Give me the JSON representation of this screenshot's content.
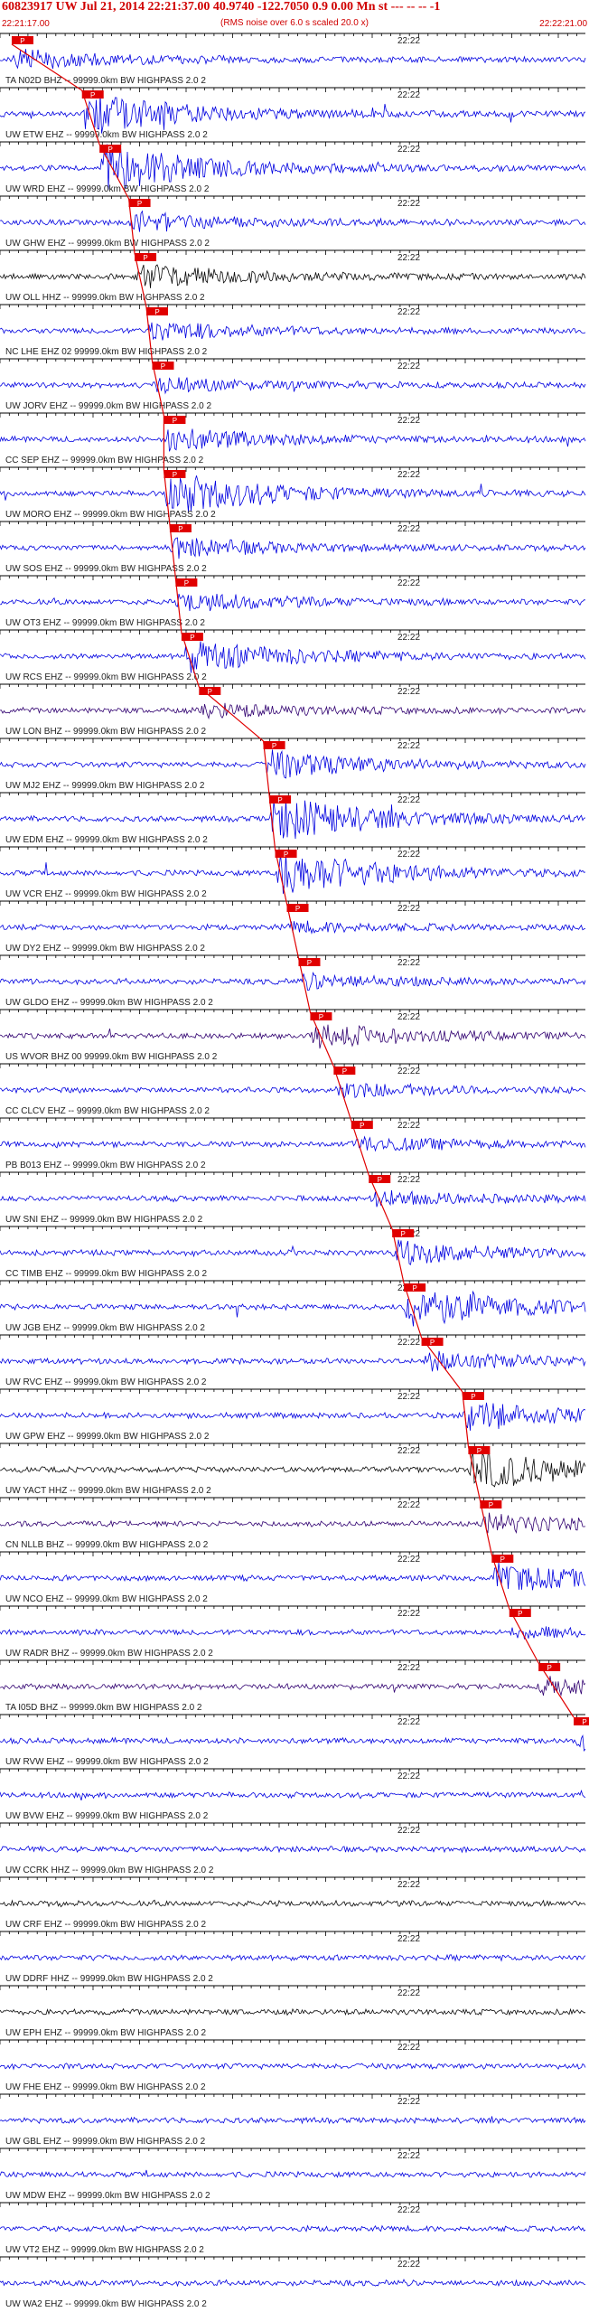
{
  "header": {
    "title": "60823917 UW Jul 21, 2014 22:21:37.00   40.9740  -122.7050   0.9 0.00 Mn st --- -- --   -1",
    "subtitle": "(RMS noise over 6.0 s scaled 20.0 x)",
    "time_start": "22:21:17.00",
    "time_end": "22:22:21.00"
  },
  "colors": {
    "pick": "#e00000",
    "trace_blue": "#0000e0",
    "trace_dark": "#0a0a0a",
    "trace_purple": "#300070",
    "header_text": "#d00000"
  },
  "chart_data": {
    "type": "line",
    "title": "60823917 UW Jul 21, 2014 22:21:37.00   40.9740  -122.7050   0.9 0.00 Mn st --- -- --   -1",
    "x_range": [
      "22:21:17.00",
      "22:22:21.00"
    ],
    "minute_mark": "22:22",
    "pick_marker": "P",
    "traces": [
      {
        "label": "TA N02D BHZ -- 99999.0km BW  HIGHPASS  2.0  2",
        "pick": 0.02,
        "amp": 0.4,
        "color": "blue"
      },
      {
        "label": "UW ETW EHZ -- 99999.0km BW  HIGHPASS  2.0  2",
        "pick": 0.14,
        "amp": 0.9,
        "color": "blue"
      },
      {
        "label": "UW WRD EHZ -- 99999.0km BW  HIGHPASS  2.0  2",
        "pick": 0.17,
        "amp": 1.0,
        "color": "blue"
      },
      {
        "label": "UW GHW EHZ -- 99999.0km BW  HIGHPASS  2.0  2",
        "pick": 0.22,
        "amp": 0.4,
        "color": "blue"
      },
      {
        "label": "UW OLL HHZ -- 99999.0km BW  HIGHPASS  2.0  2",
        "pick": 0.23,
        "amp": 0.5,
        "color": "dark"
      },
      {
        "label": "NC LHE EHZ 02 99999.0km BW  HIGHPASS  2.0  2",
        "pick": 0.25,
        "amp": 0.4,
        "color": "blue"
      },
      {
        "label": "UW JORV EHZ -- 99999.0km BW  HIGHPASS  2.0  2",
        "pick": 0.26,
        "amp": 0.3,
        "color": "blue"
      },
      {
        "label": "CC SEP EHZ -- 99999.0km BW  HIGHPASS  2.0  2",
        "pick": 0.28,
        "amp": 0.5,
        "color": "blue"
      },
      {
        "label": "UW MORO EHZ -- 99999.0km BW  HIGHPASS  2.0  2",
        "pick": 0.28,
        "amp": 0.9,
        "color": "blue"
      },
      {
        "label": "UW SOS EHZ -- 99999.0km BW  HIGHPASS  2.0  2",
        "pick": 0.29,
        "amp": 0.4,
        "color": "blue"
      },
      {
        "label": "UW OT3 EHZ -- 99999.0km BW  HIGHPASS  2.0  2",
        "pick": 0.3,
        "amp": 0.4,
        "color": "blue"
      },
      {
        "label": "UW RCS EHZ -- 99999.0km BW  HIGHPASS  2.0  2",
        "pick": 0.31,
        "amp": 0.7,
        "color": "blue"
      },
      {
        "label": "UW LON BHZ -- 99999.0km BW  HIGHPASS  2.0  2",
        "pick": 0.34,
        "amp": 0.3,
        "color": "purple"
      },
      {
        "label": "UW MJ2 EHZ -- 99999.0km BW  HIGHPASS  2.0  2",
        "pick": 0.45,
        "amp": 0.6,
        "color": "blue"
      },
      {
        "label": "UW EDM EHZ -- 99999.0km BW  HIGHPASS  2.0  2",
        "pick": 0.46,
        "amp": 1.0,
        "color": "blue"
      },
      {
        "label": "UW VCR EHZ -- 99999.0km BW  HIGHPASS  2.0  2",
        "pick": 0.47,
        "amp": 1.0,
        "color": "blue"
      },
      {
        "label": "UW DY2 EHZ -- 99999.0km BW  HIGHPASS  2.0  2",
        "pick": 0.49,
        "amp": 0.2,
        "color": "blue"
      },
      {
        "label": "UW GLDO EHZ -- 99999.0km BW  HIGHPASS  2.0  2",
        "pick": 0.51,
        "amp": 0.3,
        "color": "blue"
      },
      {
        "label": "US WVOR BHZ 00 99999.0km BW  HIGHPASS  2.0  2",
        "pick": 0.53,
        "amp": 0.5,
        "color": "purple"
      },
      {
        "label": "CC CLCV EHZ -- 99999.0km BW  HIGHPASS  2.0  2",
        "pick": 0.57,
        "amp": 0.3,
        "color": "blue"
      },
      {
        "label": "PB B013 EHZ -- 99999.0km BW  HIGHPASS  2.0  2",
        "pick": 0.6,
        "amp": 0.3,
        "color": "blue"
      },
      {
        "label": "UW SNI EHZ -- 99999.0km BW  HIGHPASS  2.0  2",
        "pick": 0.63,
        "amp": 0.3,
        "color": "blue"
      },
      {
        "label": "CC TIMB EHZ -- 99999.0km BW  HIGHPASS  2.0  2",
        "pick": 0.67,
        "amp": 0.5,
        "color": "blue"
      },
      {
        "label": "UW JGB EHZ -- 99999.0km BW  HIGHPASS  2.0  2",
        "pick": 0.69,
        "amp": 0.9,
        "color": "blue"
      },
      {
        "label": "UW RVC EHZ -- 99999.0km BW  HIGHPASS  2.0  2",
        "pick": 0.72,
        "amp": 0.4,
        "color": "blue"
      },
      {
        "label": "UW GPW EHZ -- 99999.0km BW  HIGHPASS  2.0  2",
        "pick": 0.79,
        "amp": 0.6,
        "color": "blue"
      },
      {
        "label": "UW YACT HHZ -- 99999.0km BW  HIGHPASS  2.0  2",
        "pick": 0.8,
        "amp": 0.9,
        "color": "dark"
      },
      {
        "label": "CN NLLB BHZ -- 99999.0km BW  HIGHPASS  2.0  2",
        "pick": 0.82,
        "amp": 0.4,
        "color": "purple"
      },
      {
        "label": "UW NCO EHZ -- 99999.0km BW  HIGHPASS  2.0  2",
        "pick": 0.84,
        "amp": 0.6,
        "color": "blue"
      },
      {
        "label": "UW RADR BHZ -- 99999.0km BW  HIGHPASS  2.0  2",
        "pick": 0.87,
        "amp": 0.2,
        "color": "blue"
      },
      {
        "label": "TA I05D BHZ -- 99999.0km BW  HIGHPASS  2.0  2",
        "pick": 0.92,
        "amp": 0.4,
        "color": "purple"
      },
      {
        "label": "UW RVW EHZ -- 99999.0km BW  HIGHPASS  2.0  2",
        "pick": 0.98,
        "amp": 0.4,
        "color": "blue"
      },
      {
        "label": "UW BVW EHZ -- 99999.0km BW  HIGHPASS  2.0  2",
        "pick": null,
        "amp": 0.3,
        "color": "blue"
      },
      {
        "label": "UW CCRK HHZ -- 99999.0km BW  HIGHPASS  2.0  2",
        "pick": null,
        "amp": 0.3,
        "color": "blue"
      },
      {
        "label": "UW CRF EHZ -- 99999.0km BW  HIGHPASS  2.0  2",
        "pick": null,
        "amp": 0.3,
        "color": "dark"
      },
      {
        "label": "UW DDRF HHZ -- 99999.0km BW  HIGHPASS  2.0  2",
        "pick": null,
        "amp": 0.3,
        "color": "blue"
      },
      {
        "label": "UW EPH EHZ -- 99999.0km BW  HIGHPASS  2.0  2",
        "pick": null,
        "amp": 0.4,
        "color": "dark"
      },
      {
        "label": "UW FHE EHZ -- 99999.0km BW  HIGHPASS  2.0  2",
        "pick": null,
        "amp": 0.3,
        "color": "blue"
      },
      {
        "label": "UW GBL EHZ -- 99999.0km BW  HIGHPASS  2.0  2",
        "pick": null,
        "amp": 0.3,
        "color": "blue"
      },
      {
        "label": "UW MDW EHZ -- 99999.0km BW  HIGHPASS  2.0  2",
        "pick": null,
        "amp": 0.3,
        "color": "blue"
      },
      {
        "label": "UW VT2 EHZ -- 99999.0km BW  HIGHPASS  2.0  2",
        "pick": null,
        "amp": 0.3,
        "color": "blue"
      },
      {
        "label": "UW WA2 EHZ -- 99999.0km BW  HIGHPASS  2.0  2",
        "pick": null,
        "amp": 0.3,
        "color": "blue"
      }
    ]
  }
}
